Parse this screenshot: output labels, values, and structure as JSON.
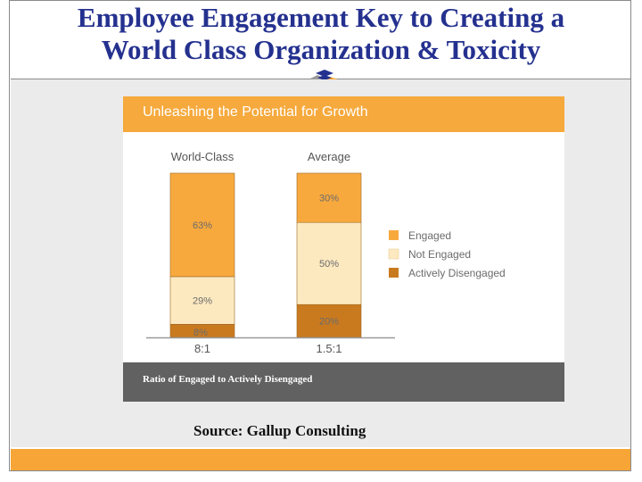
{
  "slide": {
    "title_line1": "Employee Engagement Key to Creating a",
    "title_line2": "World Class Organization & Toxicity",
    "source": "Source: Gallup Consulting",
    "colors": {
      "title": "#24318f",
      "accent_orange": "#f6a536",
      "card_footer": "#616161"
    }
  },
  "chart_data": {
    "type": "bar",
    "stacked": true,
    "title": "Unleashing the Potential for Growth",
    "footer": "Ratio of Engaged to Actively Disengaged",
    "categories": [
      "World-Class",
      "Average"
    ],
    "category_ratios": [
      "8:1",
      "1.5:1"
    ],
    "series": [
      {
        "name": "Engaged",
        "values": [
          63,
          30
        ],
        "labels": [
          "63%",
          "30%"
        ],
        "color": "#f8a93e"
      },
      {
        "name": "Not Engaged",
        "values": [
          29,
          50
        ],
        "labels": [
          "29%",
          "50%"
        ],
        "color": "#fde9c0"
      },
      {
        "name": "Actively Disengaged",
        "values": [
          8,
          20
        ],
        "labels": [
          "8%",
          "20%"
        ],
        "color": "#c97a1f"
      }
    ],
    "ylim": [
      0,
      100
    ],
    "legend_position": "right",
    "grid": false
  }
}
